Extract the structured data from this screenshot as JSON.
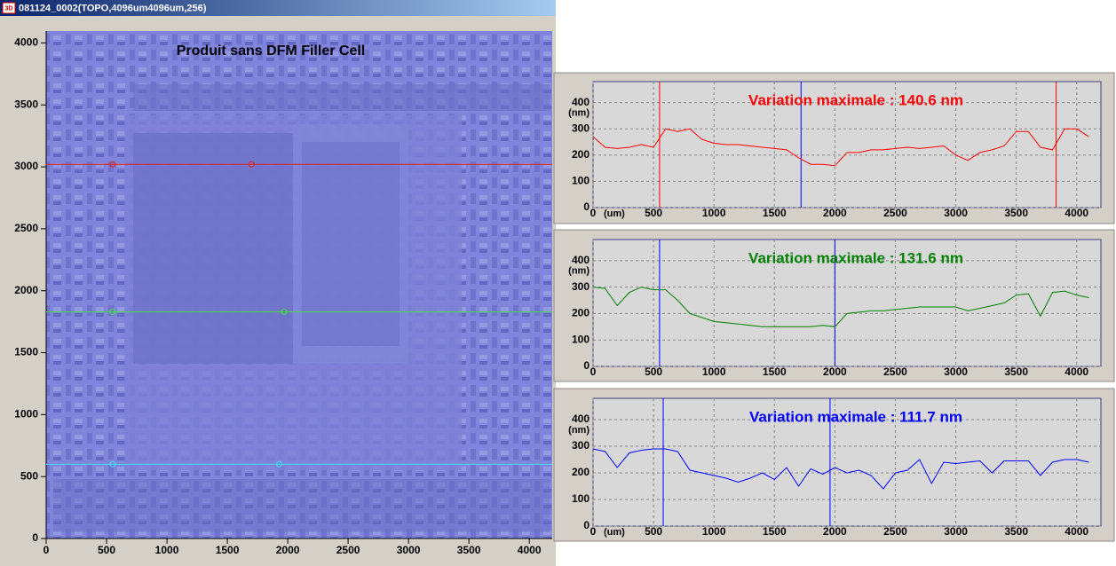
{
  "window": {
    "icon": "3D",
    "title": "081124_0002(TOPO,4096um4096um,256)"
  },
  "chart_data": [
    {
      "type": "image",
      "title": "Produit sans DFM Filler Cell",
      "xlim": [
        0,
        4190
      ],
      "ylim": [
        0,
        4096
      ],
      "xticks": [
        0,
        500,
        1000,
        1500,
        2000,
        2500,
        3000,
        3500,
        4000
      ],
      "yticks": [
        0,
        500,
        1000,
        1500,
        2000,
        2500,
        3000,
        3500,
        4000
      ],
      "profiles": [
        {
          "color": "#e02020",
          "y": 3020,
          "markers": [
            550,
            1700
          ]
        },
        {
          "color": "#40e040",
          "y": 1830,
          "markers": [
            550,
            1970
          ]
        },
        {
          "color": "#40e0f0",
          "y": 600,
          "markers": [
            550,
            1930
          ]
        }
      ]
    },
    {
      "type": "line",
      "annotation": "Variation maximale : 140.6 nm",
      "y_label": "(nm)",
      "x_label": "(um)",
      "x": [
        0,
        100,
        200,
        300,
        400,
        500,
        600,
        700,
        800,
        900,
        1000,
        1100,
        1200,
        1300,
        1400,
        1500,
        1600,
        1700,
        1800,
        1900,
        2000,
        2100,
        2200,
        2300,
        2400,
        2500,
        2600,
        2700,
        2800,
        2900,
        3000,
        3100,
        3200,
        3300,
        3400,
        3500,
        3600,
        3700,
        3800,
        3900,
        4000,
        4100
      ],
      "series": [
        {
          "color": "#ff0000",
          "values": [
            270,
            230,
            225,
            230,
            240,
            230,
            300,
            290,
            300,
            260,
            245,
            240,
            240,
            235,
            230,
            225,
            220,
            190,
            165,
            165,
            160,
            210,
            210,
            220,
            220,
            225,
            230,
            225,
            230,
            235,
            200,
            180,
            210,
            220,
            235,
            290,
            290,
            230,
            220,
            300,
            300,
            270
          ]
        }
      ],
      "cursors": [
        {
          "color": "#ff0000",
          "x": 550
        },
        {
          "color": "#0000ff",
          "x": 1720
        },
        {
          "color": "#ff0000",
          "x": 3830
        }
      ],
      "xlim": [
        0,
        4200
      ],
      "ylim": [
        0,
        480
      ],
      "xticks": [
        0,
        500,
        1000,
        1500,
        2000,
        2500,
        3000,
        3500,
        4000
      ],
      "yticks": [
        0,
        100,
        200,
        300,
        400
      ],
      "grid": true
    },
    {
      "type": "line",
      "annotation": "Variation maximale : 131.6 nm",
      "y_label": "(nm)",
      "x": [
        0,
        100,
        200,
        300,
        400,
        500,
        600,
        700,
        800,
        900,
        1000,
        1100,
        1200,
        1300,
        1400,
        1500,
        1600,
        1700,
        1800,
        1900,
        2000,
        2100,
        2200,
        2300,
        2400,
        2500,
        2600,
        2700,
        2800,
        2900,
        3000,
        3100,
        3200,
        3300,
        3400,
        3500,
        3600,
        3700,
        3800,
        3900,
        4000,
        4100
      ],
      "series": [
        {
          "color": "#008000",
          "values": [
            300,
            295,
            230,
            280,
            300,
            290,
            290,
            250,
            200,
            185,
            170,
            165,
            160,
            155,
            150,
            150,
            150,
            150,
            150,
            155,
            150,
            200,
            205,
            210,
            210,
            215,
            220,
            225,
            225,
            225,
            225,
            210,
            220,
            230,
            240,
            270,
            275,
            190,
            280,
            285,
            270,
            260
          ]
        }
      ],
      "cursors": [
        {
          "color": "#0000ff",
          "x": 550
        },
        {
          "color": "#0000ff",
          "x": 2000
        }
      ],
      "xlim": [
        0,
        4200
      ],
      "ylim": [
        0,
        480
      ],
      "xticks": [
        0,
        500,
        1000,
        1500,
        2000,
        2500,
        3000,
        3500,
        4000
      ],
      "yticks": [
        0,
        100,
        200,
        300,
        400
      ],
      "grid": true
    },
    {
      "type": "line",
      "annotation": "Variation maximale : 111.7 nm",
      "y_label": "(nm)",
      "x_label": "(um)",
      "x": [
        0,
        100,
        200,
        300,
        400,
        500,
        600,
        700,
        800,
        900,
        1000,
        1100,
        1200,
        1300,
        1400,
        1500,
        1600,
        1700,
        1800,
        1900,
        2000,
        2100,
        2200,
        2300,
        2400,
        2500,
        2600,
        2700,
        2800,
        2900,
        3000,
        3100,
        3200,
        3300,
        3400,
        3500,
        3600,
        3700,
        3800,
        3900,
        4000,
        4100
      ],
      "series": [
        {
          "color": "#0000ff",
          "values": [
            290,
            280,
            220,
            275,
            285,
            290,
            290,
            280,
            210,
            200,
            190,
            180,
            165,
            180,
            200,
            175,
            220,
            150,
            215,
            195,
            220,
            200,
            210,
            190,
            140,
            200,
            210,
            250,
            160,
            240,
            235,
            240,
            245,
            200,
            245,
            245,
            245,
            190,
            240,
            250,
            250,
            240
          ]
        }
      ],
      "cursors": [
        {
          "color": "#0000ff",
          "x": 580
        },
        {
          "color": "#0000ff",
          "x": 1960
        }
      ],
      "xlim": [
        0,
        4200
      ],
      "ylim": [
        0,
        480
      ],
      "xticks": [
        0,
        500,
        1000,
        1500,
        2000,
        2500,
        3000,
        3500,
        4000
      ],
      "yticks": [
        0,
        100,
        200,
        300,
        400
      ],
      "grid": true
    }
  ]
}
